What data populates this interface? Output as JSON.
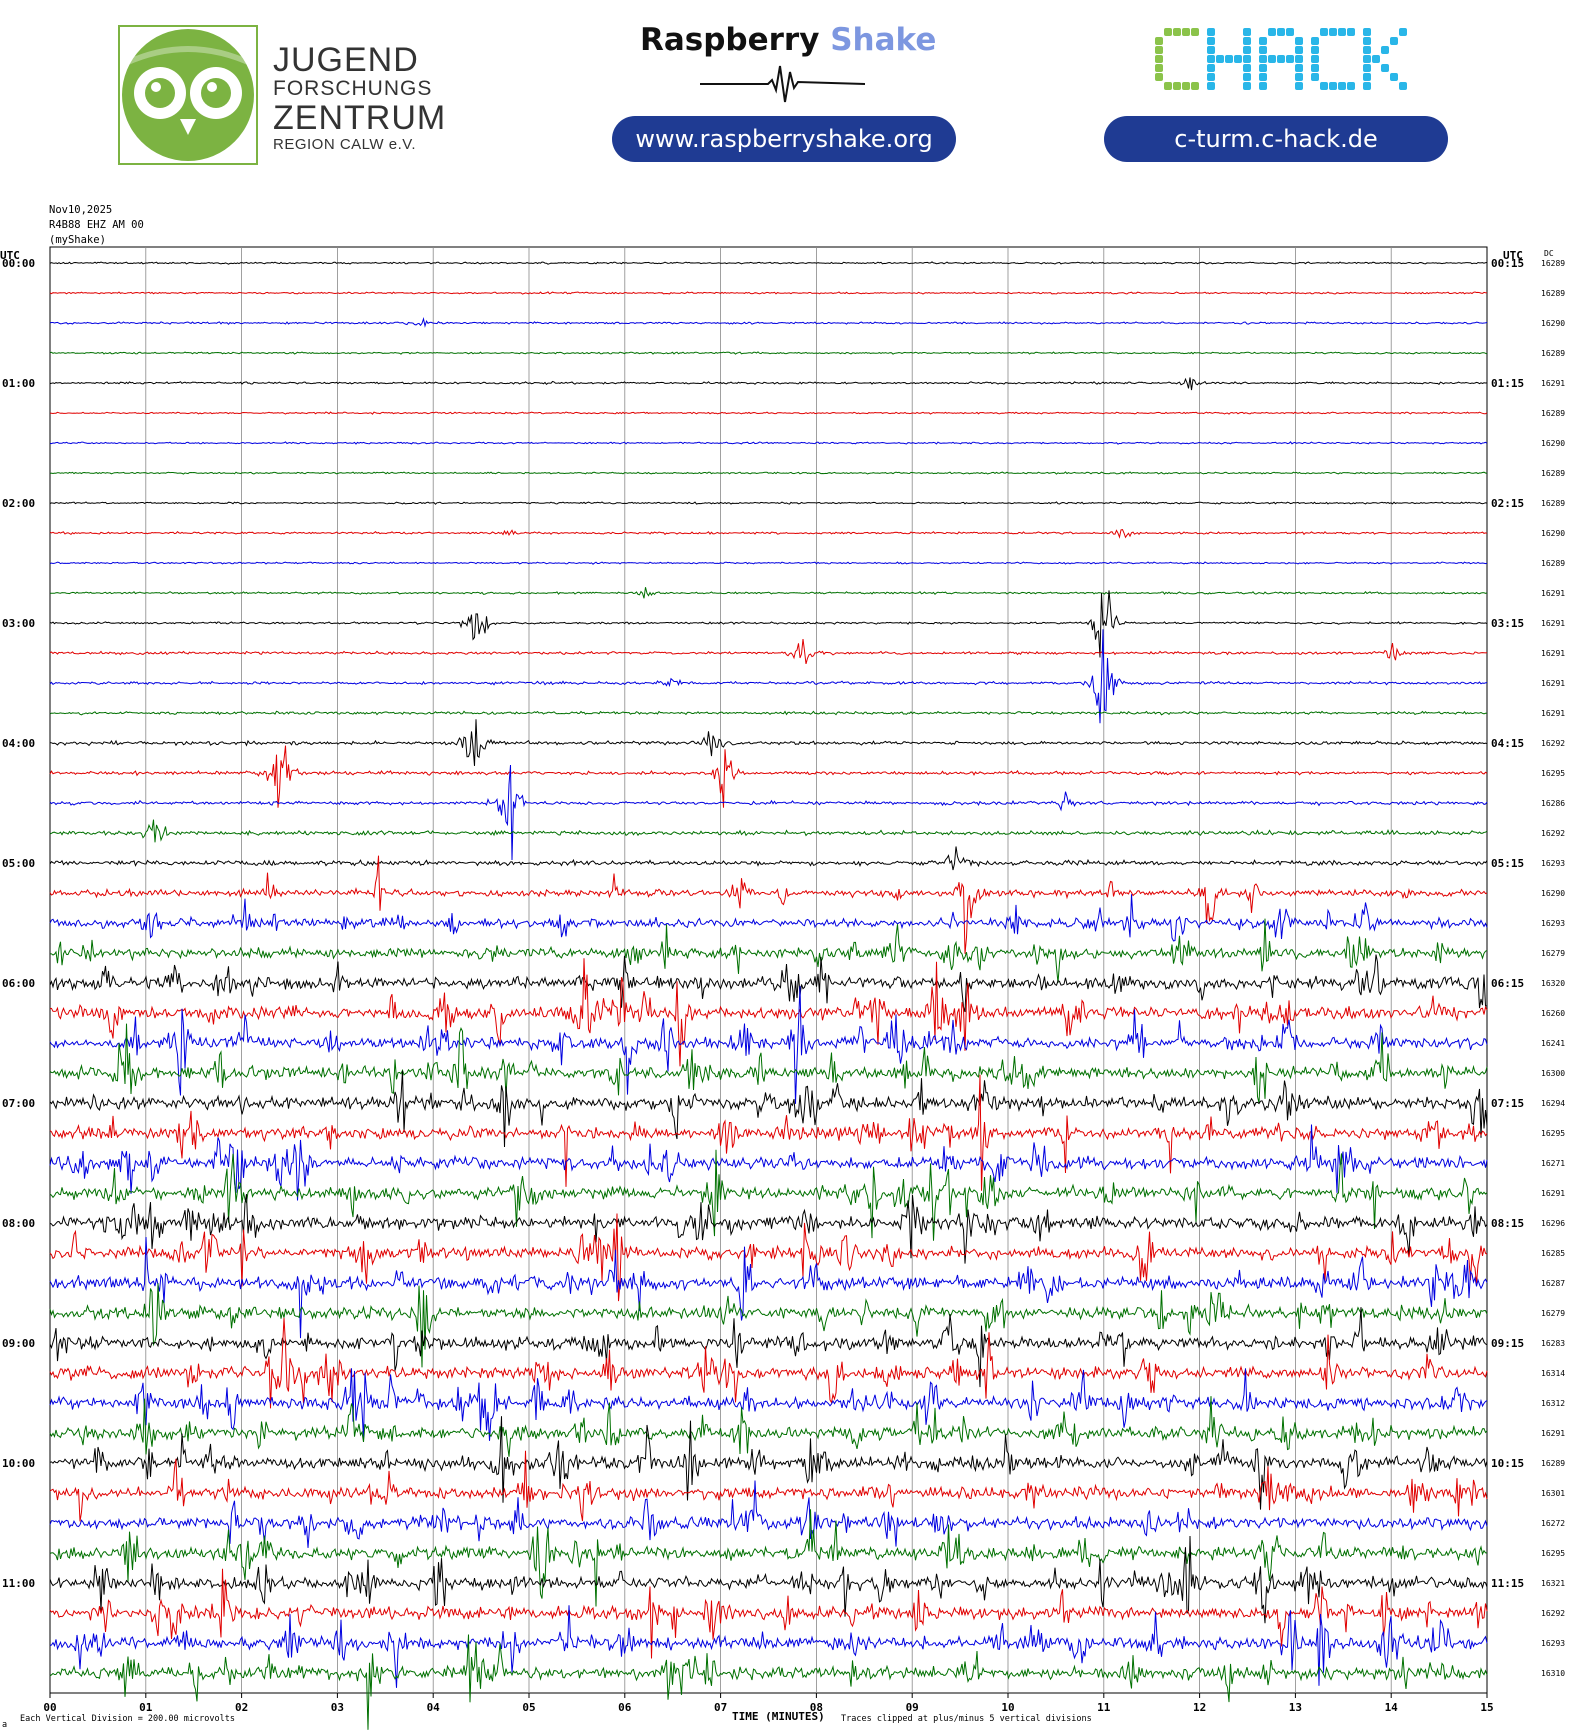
{
  "header": {
    "jfz_logo": [
      "JUGEND",
      "FORSCHUNGS",
      "ZENTRUM",
      "REGION CALW e.V."
    ],
    "rs_title_a": "Raspberry",
    "rs_title_b": "Shake",
    "rs_url": "www.raspberryshake.org",
    "chack_logo": "CHACK",
    "chack_url": "c-turm.c-hack.de",
    "colors": {
      "pill": "#1f3b93",
      "owl": "#7cb342",
      "shake": "#7d97e0",
      "chack_green": "#8bc34a",
      "chack_blue": "#29b6e8"
    }
  },
  "chart_meta": {
    "date": "Nov10,2025",
    "station": "R4B88 EHZ AM 00",
    "source": "(myShake)",
    "utc_left": "UTC",
    "utc_right": "UTC",
    "dc_label": "DC",
    "xlabel": "TIME (MINUTES)",
    "scale_note": "Each Vertical Division =  200.00 microvolts",
    "clip_note": "Traces clipped at plus/minus 5 vertical divisions"
  },
  "chart_data": {
    "type": "line",
    "title": "",
    "xlabel": "TIME (MINUTES)",
    "x_ticks": [
      "00",
      "01",
      "02",
      "03",
      "04",
      "05",
      "06",
      "07",
      "08",
      "09",
      "10",
      "11",
      "12",
      "13",
      "14",
      "15"
    ],
    "xlim": [
      0,
      15
    ],
    "trace_interval_minutes": 15,
    "trace_colors": [
      "#000000",
      "#e00000",
      "#0000e0",
      "#007000"
    ],
    "hour_labels_left": [
      "00:00",
      "01:00",
      "02:00",
      "03:00",
      "04:00",
      "05:00",
      "06:00",
      "07:00",
      "08:00",
      "09:00",
      "10:00",
      "11:00"
    ],
    "hour_labels_right": [
      "00:15",
      "01:15",
      "02:15",
      "03:15",
      "04:15",
      "05:15",
      "06:15",
      "07:15",
      "08:15",
      "09:15",
      "10:15",
      "11:15"
    ],
    "dc_offsets": [
      16289,
      16289,
      16290,
      16289,
      16291,
      16289,
      16290,
      16289,
      16289,
      16290,
      16289,
      16291,
      16291,
      16291,
      16291,
      16291,
      16292,
      16295,
      16286,
      16292,
      16293,
      16290,
      16293,
      16279,
      16320,
      16260,
      16241,
      16300,
      16294,
      16295,
      16271,
      16291,
      16296,
      16285,
      16287,
      16279,
      16283,
      16314,
      16312,
      16291,
      16289,
      16301,
      16272,
      16295,
      16321,
      16292,
      16293,
      16310
    ],
    "activity_level": [
      0.5,
      0.5,
      0.6,
      0.5,
      0.6,
      0.5,
      0.5,
      0.5,
      0.5,
      0.6,
      0.5,
      0.6,
      0.6,
      0.8,
      0.8,
      0.8,
      1,
      1,
      1,
      1.2,
      1.4,
      2,
      2.5,
      3,
      3.5,
      3.5,
      3.5,
      3.5,
      3.5,
      3.5,
      3.5,
      3.5,
      3.5,
      3.5,
      3.5,
      3.5,
      3.5,
      3.5,
      3.5,
      3.5,
      3.5,
      3.5,
      3.5,
      3.5,
      3.5,
      3.5,
      3.5,
      3.5
    ],
    "notable_events": [
      {
        "trace": 2,
        "minute": 3.9,
        "amplitude": 4
      },
      {
        "trace": 4,
        "minute": 11.9,
        "amplitude": 5
      },
      {
        "trace": 9,
        "minute": 4.8,
        "amplitude": 3
      },
      {
        "trace": 9,
        "minute": 11.2,
        "amplitude": 5
      },
      {
        "trace": 11,
        "minute": 6.2,
        "amplitude": 4
      },
      {
        "trace": 12,
        "minute": 4.45,
        "amplitude": 30
      },
      {
        "trace": 12,
        "minute": 11.0,
        "amplitude": 50
      },
      {
        "trace": 13,
        "minute": 7.85,
        "amplitude": 18
      },
      {
        "trace": 13,
        "minute": 14.0,
        "amplitude": 10
      },
      {
        "trace": 14,
        "minute": 6.5,
        "amplitude": 6
      },
      {
        "trace": 14,
        "minute": 11.0,
        "amplitude": 60
      },
      {
        "trace": 16,
        "minute": 4.45,
        "amplitude": 50
      },
      {
        "trace": 16,
        "minute": 6.9,
        "amplitude": 14
      },
      {
        "trace": 17,
        "minute": 7.05,
        "amplitude": 28
      },
      {
        "trace": 17,
        "minute": 2.4,
        "amplitude": 50
      },
      {
        "trace": 18,
        "minute": 4.8,
        "amplitude": 48
      },
      {
        "trace": 18,
        "minute": 10.6,
        "amplitude": 8
      },
      {
        "trace": 19,
        "minute": 1.1,
        "amplitude": 25
      },
      {
        "trace": 20,
        "minute": 9.45,
        "amplitude": 12
      },
      {
        "trace": 21,
        "minute": 9.6,
        "amplitude": 30
      }
    ]
  }
}
